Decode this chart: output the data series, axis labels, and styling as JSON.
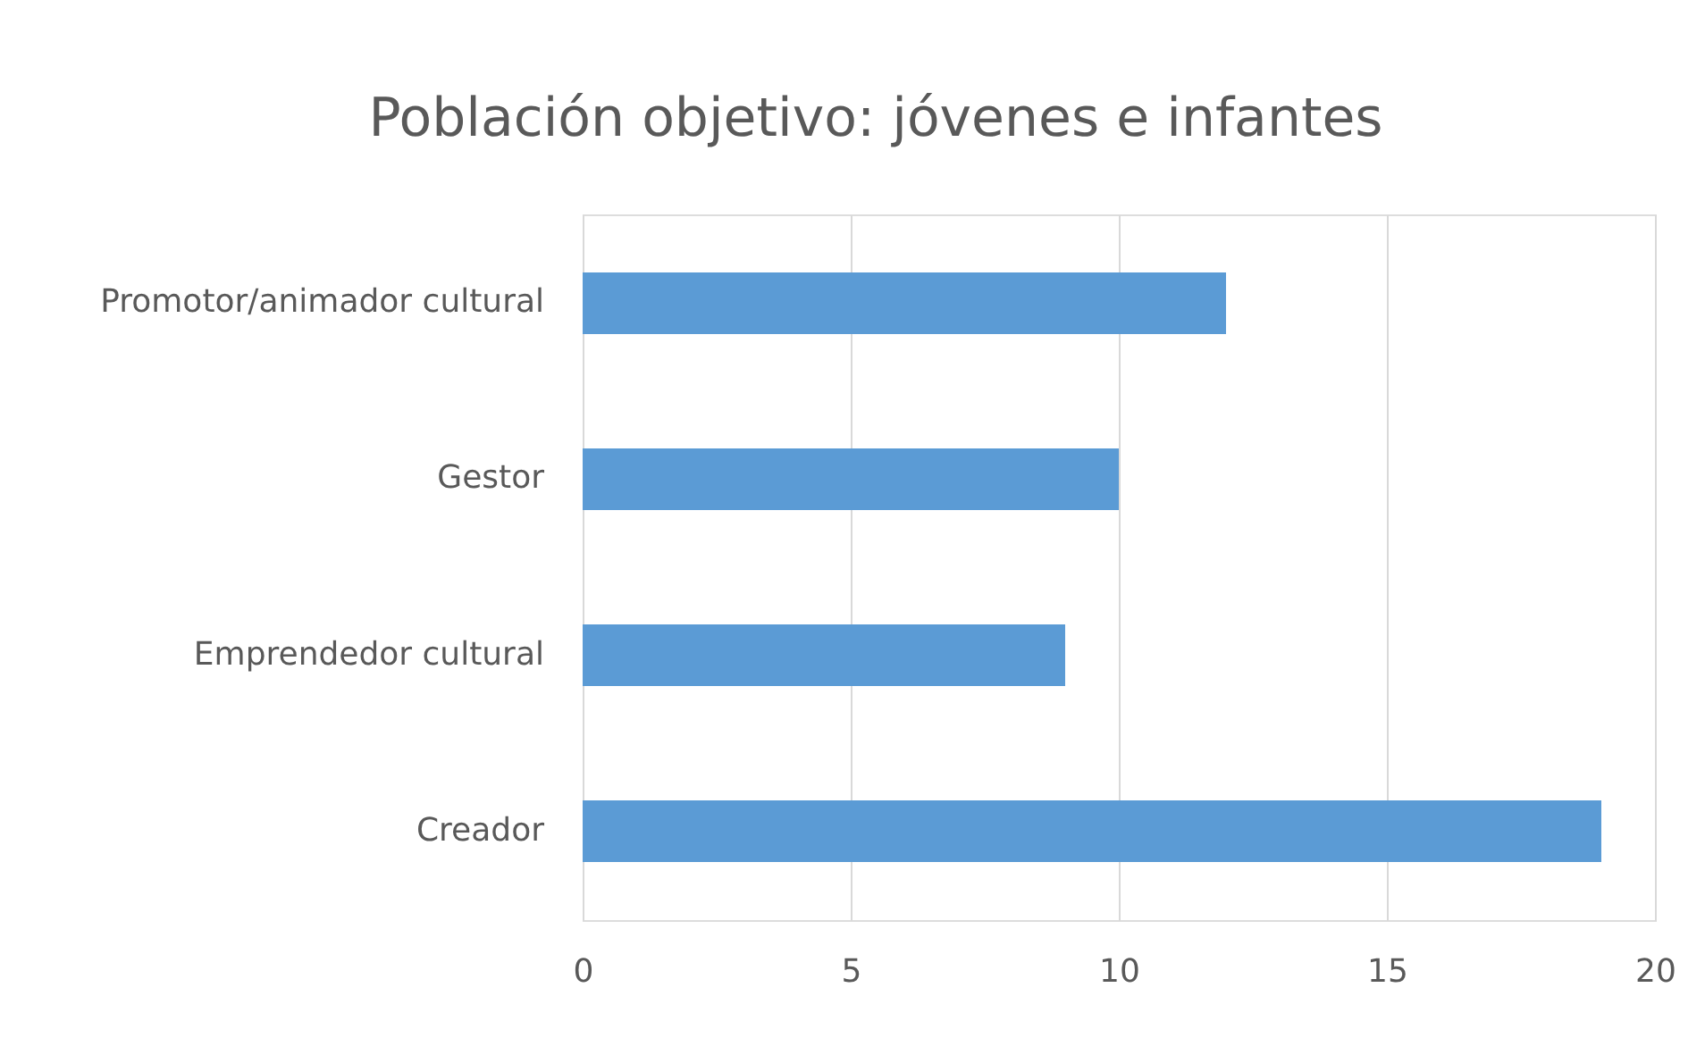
{
  "chart_data": {
    "type": "bar",
    "orientation": "horizontal",
    "title": "Población objetivo: jóvenes e infantes",
    "categories": [
      "Promotor/animador cultural",
      "Gestor",
      "Emprendedor cultural",
      "Creador"
    ],
    "values": [
      12,
      10,
      9,
      19
    ],
    "color": "#5b9bd5",
    "xlim": [
      0,
      20
    ],
    "xticks": [
      0,
      5,
      10,
      15,
      20
    ],
    "grid": "x"
  }
}
